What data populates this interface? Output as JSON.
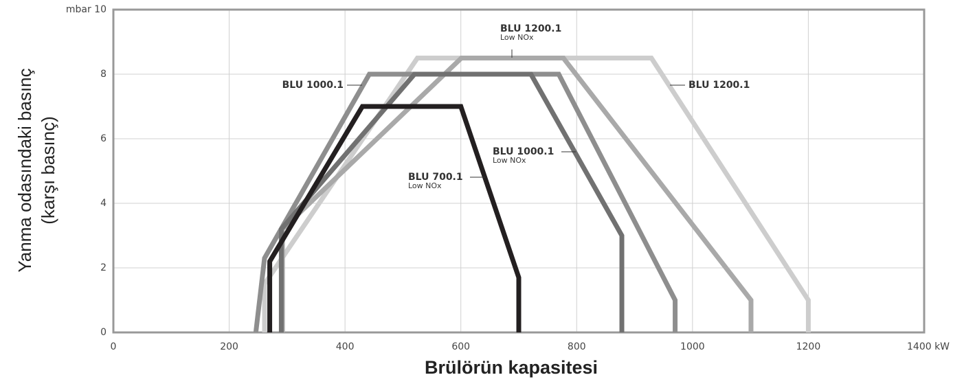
{
  "chart_data": {
    "type": "line",
    "ylabel": [
      "Yanma odasındaki basınç",
      "(karşı basınç)"
    ],
    "xlabel": "Brülörün kapasitesi",
    "xlim": [
      0,
      1400
    ],
    "ylim": [
      0,
      10
    ],
    "xticks": [
      0,
      200,
      400,
      600,
      800,
      1000,
      1200,
      {
        "value": 1400,
        "label": "1400 kW"
      }
    ],
    "yticks": [
      0,
      2,
      4,
      6,
      8,
      {
        "value": 10,
        "label": "mbar 10"
      }
    ],
    "grid": true,
    "series": [
      {
        "name": "BLU 1200.1",
        "color": "#cdcdcd",
        "x": [
          261,
          261,
          525,
          929,
          1200,
          1200
        ],
        "values": [
          0,
          1.5,
          8.5,
          8.5,
          1.0,
          0
        ]
      },
      {
        "name": "BLU 1200.1",
        "sublabel": "Low NOx",
        "color": "#a9a9a9",
        "x": [
          292,
          292,
          601,
          777,
          1101,
          1101
        ],
        "values": [
          0,
          3.2,
          8.5,
          8.5,
          1.0,
          0
        ]
      },
      {
        "name": "BLU 1000.1",
        "color": "#8e8e8e",
        "x": [
          246,
          261,
          442,
          769,
          970,
          970
        ],
        "values": [
          0,
          2.3,
          8,
          8,
          1.0,
          0
        ]
      },
      {
        "name": "BLU 1000.1",
        "sublabel": "Low NOx",
        "color": "#717171",
        "x": [
          290,
          290,
          520,
          721,
          878,
          878
        ],
        "values": [
          0,
          3.2,
          8,
          8,
          3,
          0
        ]
      },
      {
        "name": "BLU 700.1",
        "sublabel": "Low NOx",
        "color": "#231f20",
        "x": [
          270,
          270,
          430,
          600,
          700,
          700
        ],
        "values": [
          0,
          2.2,
          7,
          7,
          1.7,
          0
        ]
      }
    ]
  }
}
